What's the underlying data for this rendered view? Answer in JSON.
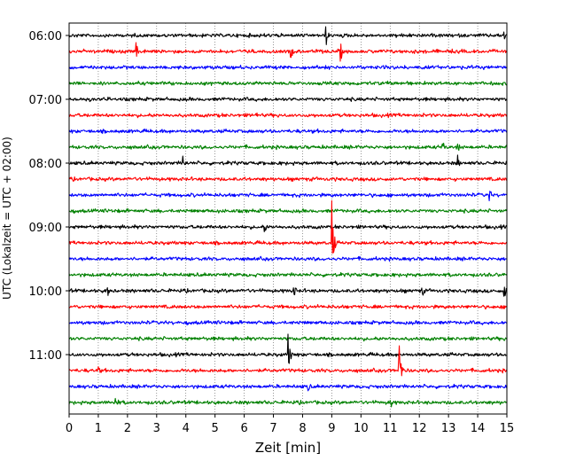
{
  "chart_data": {
    "type": "line",
    "subtype": "seismic-helicorder",
    "title": "",
    "xlabel": "Zeit  [min]",
    "ylabel": "UTC (Lokalzeit = UTC + 02:00)",
    "xlim": [
      0,
      15
    ],
    "x_ticks": [
      0,
      1,
      2,
      3,
      4,
      5,
      6,
      7,
      8,
      9,
      10,
      11,
      12,
      13,
      14,
      15
    ],
    "x_tick_labels": [
      "0",
      "1",
      "2",
      "3",
      "4",
      "5",
      "6",
      "7",
      "8",
      "9",
      "10",
      "11",
      "12",
      "13",
      "14",
      "15"
    ],
    "y_tick_labels": [
      "06:00",
      "07:00",
      "08:00",
      "09:00",
      "10:00",
      "11:00"
    ],
    "grid": "vertical dotted at each minute",
    "trace_interval_minutes": 15,
    "trace_color_cycle": [
      "#000000",
      "#ff0000",
      "#0000ff",
      "#008000"
    ],
    "traces": [
      {
        "start": "06:00",
        "color": "#000000",
        "events": [
          {
            "t": 8.8,
            "amp": 14
          },
          {
            "t": 14.9,
            "amp": 8
          }
        ]
      },
      {
        "start": "06:15",
        "color": "#ff0000",
        "events": [
          {
            "t": 2.3,
            "amp": 10
          },
          {
            "t": 7.6,
            "amp": 10
          },
          {
            "t": 9.3,
            "amp": 14
          }
        ]
      },
      {
        "start": "06:30",
        "color": "#0000ff",
        "events": []
      },
      {
        "start": "06:45",
        "color": "#008000",
        "events": []
      },
      {
        "start": "07:00",
        "color": "#000000",
        "events": []
      },
      {
        "start": "07:15",
        "color": "#ff0000",
        "events": [
          {
            "t": 6.4,
            "amp": 5
          }
        ]
      },
      {
        "start": "07:30",
        "color": "#0000ff",
        "events": []
      },
      {
        "start": "07:45",
        "color": "#008000",
        "events": [
          {
            "t": 12.8,
            "amp": 8
          },
          {
            "t": 13.3,
            "amp": 10
          }
        ]
      },
      {
        "start": "08:00",
        "color": "#000000",
        "events": [
          {
            "t": 3.9,
            "amp": 12
          },
          {
            "t": 13.3,
            "amp": 12
          }
        ]
      },
      {
        "start": "08:15",
        "color": "#ff0000",
        "events": []
      },
      {
        "start": "08:30",
        "color": "#0000ff",
        "events": [
          {
            "t": 14.4,
            "amp": 10
          }
        ]
      },
      {
        "start": "08:45",
        "color": "#008000",
        "events": []
      },
      {
        "start": "09:00",
        "color": "#000000",
        "events": [
          {
            "t": 6.7,
            "amp": 8
          }
        ]
      },
      {
        "start": "09:15",
        "color": "#ff0000",
        "events": [
          {
            "t": 9.0,
            "amp": 48
          }
        ]
      },
      {
        "start": "09:30",
        "color": "#0000ff",
        "events": []
      },
      {
        "start": "09:45",
        "color": "#008000",
        "events": []
      },
      {
        "start": "10:00",
        "color": "#000000",
        "events": [
          {
            "t": 1.3,
            "amp": 10
          },
          {
            "t": 7.7,
            "amp": 10
          },
          {
            "t": 12.1,
            "amp": 8
          },
          {
            "t": 14.9,
            "amp": 12
          }
        ]
      },
      {
        "start": "10:15",
        "color": "#ff0000",
        "events": []
      },
      {
        "start": "10:30",
        "color": "#0000ff",
        "events": []
      },
      {
        "start": "10:45",
        "color": "#008000",
        "events": []
      },
      {
        "start": "11:00",
        "color": "#000000",
        "events": [
          {
            "t": 7.5,
            "amp": 28
          }
        ]
      },
      {
        "start": "11:15",
        "color": "#ff0000",
        "events": [
          {
            "t": 11.3,
            "amp": 45
          },
          {
            "t": 1.0,
            "amp": 6
          }
        ]
      },
      {
        "start": "11:30",
        "color": "#0000ff",
        "events": [
          {
            "t": 8.2,
            "amp": 8
          }
        ]
      },
      {
        "start": "11:45",
        "color": "#008000",
        "events": [
          {
            "t": 1.6,
            "amp": 12
          },
          {
            "t": 11.0,
            "amp": 10
          }
        ]
      }
    ]
  }
}
